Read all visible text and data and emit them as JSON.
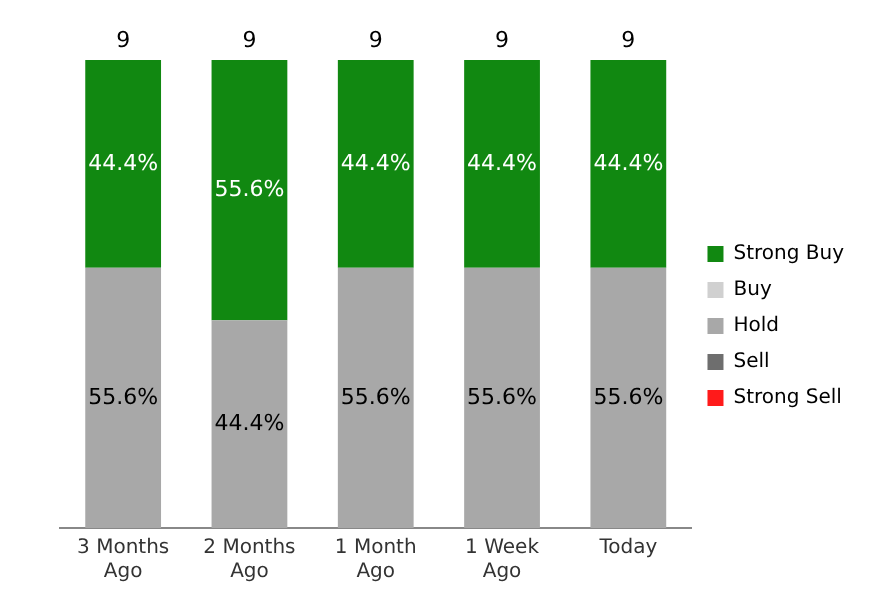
{
  "chart_data": {
    "type": "bar",
    "stacked": true,
    "categories": [
      "3 Months Ago",
      "2 Months Ago",
      "1 Month Ago",
      "1 Week Ago",
      "Today"
    ],
    "series": [
      {
        "name": "Strong Sell",
        "color": "#ff1a1a",
        "values": [
          null,
          null,
          null,
          null,
          null
        ]
      },
      {
        "name": "Sell",
        "color": "#6e6e6e",
        "values": [
          null,
          null,
          null,
          null,
          null
        ]
      },
      {
        "name": "Hold",
        "color": "#a8a8a8",
        "values": [
          55.6,
          44.4,
          55.6,
          55.6,
          55.6
        ],
        "value_labels": [
          "55.6%",
          "44.4%",
          "55.6%",
          "55.6%",
          "55.6%"
        ]
      },
      {
        "name": "Buy",
        "color": "#d0d0d0",
        "values": [
          null,
          null,
          null,
          null,
          null
        ]
      },
      {
        "name": "Strong Buy",
        "color": "#118811",
        "values": [
          44.4,
          55.6,
          44.4,
          44.4,
          44.4
        ],
        "value_labels": [
          "44.4%",
          "55.6%",
          "44.4%",
          "44.4%",
          "44.4%"
        ]
      }
    ],
    "annotations": [
      {
        "text": "9",
        "x": "3 Months Ago",
        "y": 100
      },
      {
        "text": "9",
        "x": "2 Months Ago",
        "y": 100
      },
      {
        "text": "9",
        "x": "1 Month Ago",
        "y": 100
      },
      {
        "text": "9",
        "x": "1 Week Ago",
        "y": 100
      },
      {
        "text": "9",
        "x": "Today",
        "y": 100
      }
    ],
    "tick_labels": "x",
    "grid": false,
    "legend": "right"
  }
}
